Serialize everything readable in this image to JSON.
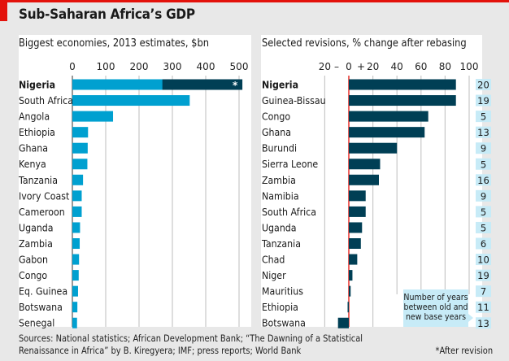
{
  "title": "Sub-Saharan Africa’s GDP",
  "footer": {
    "sources_line1": "Sources: National statistics; African Development Bank; “The Dawning of a Statistical",
    "sources_line2": "Renaissance in Africa” by B. Kiregyera; IMF; press reports; World Bank",
    "note": "*After revision"
  },
  "colors": {
    "accent_red": "#e3120b",
    "light_blue": "#00a0d0",
    "dark_teal": "#003f55",
    "label_box": "#c7ebf7"
  },
  "chart_data": [
    {
      "type": "bar",
      "orientation": "horizontal",
      "title": "Biggest economies, 2013 estimates, $bn",
      "xlim": [
        0,
        500
      ],
      "xticks": [
        "0",
        "100",
        "200",
        "300",
        "400",
        "500"
      ],
      "grid": true,
      "categories": [
        "Nigeria",
        "South Africa",
        "Angola",
        "Ethiopia",
        "Ghana",
        "Kenya",
        "Tanzania",
        "Ivory Coast",
        "Cameroon",
        "Uganda",
        "Zambia",
        "Gabon",
        "Congo",
        "Eq. Guinea",
        "Botswana",
        "Senegal"
      ],
      "highlight": "Nigeria",
      "series": [
        {
          "name": "2013 estimate",
          "values": [
            270,
            352,
            122,
            47,
            46,
            45,
            32,
            28,
            28,
            23,
            22,
            20,
            19,
            17,
            15,
            14
          ]
        },
        {
          "name": "After revision",
          "values": [
            510,
            null,
            null,
            null,
            null,
            null,
            null,
            null,
            null,
            null,
            null,
            null,
            null,
            null,
            null,
            null
          ],
          "marker": "*"
        }
      ]
    },
    {
      "type": "bar",
      "orientation": "horizontal",
      "title": "Selected revisions, % change after rebasing",
      "xlim": [
        -20,
        100
      ],
      "xticks": [
        "20",
        "–",
        "0",
        "+",
        "20",
        "40",
        "60",
        "80",
        "100"
      ],
      "grid": true,
      "categories": [
        "Nigeria",
        "Guinea-Bissau",
        "Congo",
        "Ghana",
        "Burundi",
        "Sierra Leone",
        "Zambia",
        "Namibia",
        "South Africa",
        "Uganda",
        "Tanzania",
        "Chad",
        "Niger",
        "Mauritius",
        "Ethiopia",
        "Botswana"
      ],
      "highlight": "Nigeria",
      "values": [
        89,
        89,
        66,
        63,
        40,
        26,
        25,
        14,
        14,
        11,
        10,
        7,
        3,
        1.5,
        -1,
        -9
      ],
      "years_between_base": [
        20,
        19,
        5,
        13,
        9,
        5,
        16,
        9,
        5,
        5,
        6,
        10,
        19,
        7,
        11,
        13
      ],
      "annotation": "Number of years between old and new base years"
    }
  ]
}
